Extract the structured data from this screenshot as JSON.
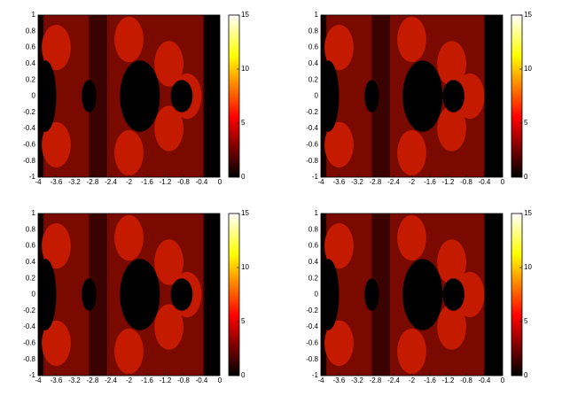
{
  "chart_data": [
    {
      "type": "heatmap",
      "colormap": "hot",
      "xlim": [
        -4,
        0
      ],
      "ylim": [
        -1,
        1
      ],
      "xticks": [
        -4,
        -3.6,
        -3.2,
        -2.8,
        -2.4,
        -2,
        -1.6,
        -1.2,
        -0.8,
        -0.4,
        0
      ],
      "yticks": [
        -1,
        -0.8,
        -0.6,
        -0.4,
        -0.2,
        0,
        0.2,
        0.4,
        0.6,
        0.8,
        1
      ],
      "clim": [
        0,
        15
      ],
      "cticks": [
        0,
        5,
        10,
        15
      ]
    },
    {
      "type": "heatmap",
      "colormap": "hot",
      "xlim": [
        -4,
        0
      ],
      "ylim": [
        -1,
        1
      ],
      "xticks": [
        -4,
        -3.6,
        -3.2,
        -2.8,
        -2.4,
        -2,
        -1.6,
        -1.2,
        -0.8,
        -0.4,
        0
      ],
      "yticks": [
        -1,
        -0.8,
        -0.6,
        -0.4,
        -0.2,
        0,
        0.2,
        0.4,
        0.6,
        0.8,
        1
      ],
      "clim": [
        0,
        15
      ],
      "cticks": [
        0,
        5,
        10,
        15
      ]
    },
    {
      "type": "heatmap",
      "colormap": "hot",
      "xlim": [
        -4,
        0
      ],
      "ylim": [
        -1,
        1
      ],
      "xticks": [
        -4,
        -3.6,
        -3.2,
        -2.8,
        -2.4,
        -2,
        -1.6,
        -1.2,
        -0.8,
        -0.4,
        0
      ],
      "yticks": [
        -1,
        -0.8,
        -0.6,
        -0.4,
        -0.2,
        0,
        0.2,
        0.4,
        0.6,
        0.8,
        1
      ],
      "clim": [
        0,
        15
      ],
      "cticks": [
        0,
        5,
        10,
        15
      ]
    },
    {
      "type": "heatmap",
      "colormap": "hot",
      "xlim": [
        -4,
        0
      ],
      "ylim": [
        -1,
        1
      ],
      "xticks": [
        -4,
        -3.6,
        -3.2,
        -2.8,
        -2.4,
        -2,
        -1.6,
        -1.2,
        -0.8,
        -0.4,
        0
      ],
      "yticks": [
        -1,
        -0.8,
        -0.6,
        -0.4,
        -0.2,
        0,
        0.2,
        0.4,
        0.6,
        0.8,
        1
      ],
      "clim": [
        0,
        15
      ],
      "cticks": [
        0,
        5,
        10,
        15
      ]
    }
  ]
}
